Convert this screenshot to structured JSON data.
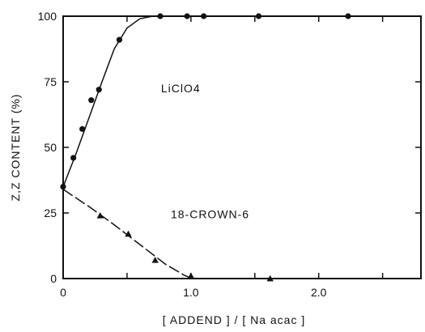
{
  "chart_data": {
    "type": "scatter",
    "title": "",
    "xlabel": "[ ADDEND ] / [ Na acac ]",
    "ylabel": "Z,Z CONTENT (%)",
    "xlim": [
      0,
      2.8
    ],
    "ylim": [
      0,
      100
    ],
    "x_ticks": [
      0,
      0.5,
      1.0,
      1.5,
      2.0,
      2.5
    ],
    "x_tick_labels": [
      "0",
      "",
      "1.0",
      "",
      "2.0",
      ""
    ],
    "y_ticks": [
      0,
      25,
      50,
      75,
      100
    ],
    "y_tick_labels": [
      "0",
      "25",
      "50",
      "75",
      "100"
    ],
    "grid": false,
    "series": [
      {
        "name": "LiClO4",
        "marker": "circle",
        "x": [
          0,
          0.08,
          0.15,
          0.22,
          0.28,
          0.44,
          0.76,
          0.97,
          1.1,
          1.53,
          2.23
        ],
        "y": [
          35,
          46,
          57,
          68,
          72,
          91,
          100,
          100,
          100,
          100,
          100
        ],
        "fit": {
          "x": [
            0,
            0.1,
            0.2,
            0.3,
            0.4,
            0.5,
            0.6,
            0.7,
            0.8,
            0.9,
            1.0,
            1.5,
            2.0,
            2.5,
            2.8
          ],
          "y": [
            35,
            47.5,
            61,
            74.5,
            87.5,
            95.5,
            99,
            100,
            100,
            100,
            100,
            100,
            100,
            100,
            100
          ]
        }
      },
      {
        "name": "18-CROWN-6",
        "marker": "triangle",
        "x": [
          0.29,
          0.51,
          0.72,
          1.0,
          1.62
        ],
        "y": [
          24,
          17,
          7,
          1,
          0
        ],
        "fit": {
          "x": [
            0,
            0.2,
            0.4,
            0.6,
            0.8,
            0.95,
            1.0,
            1.1,
            1.3,
            1.6,
            2.0,
            2.5,
            2.8
          ],
          "y": [
            34,
            27.5,
            20.5,
            13,
            5.5,
            1.2,
            0.2,
            0,
            0,
            0,
            0,
            0,
            0
          ]
        }
      }
    ],
    "annotations": [
      {
        "text": "LiClO4",
        "x": 0.92,
        "y": 71
      },
      {
        "text": "18-CROWN-6",
        "x": 1.15,
        "y": 23
      }
    ]
  }
}
